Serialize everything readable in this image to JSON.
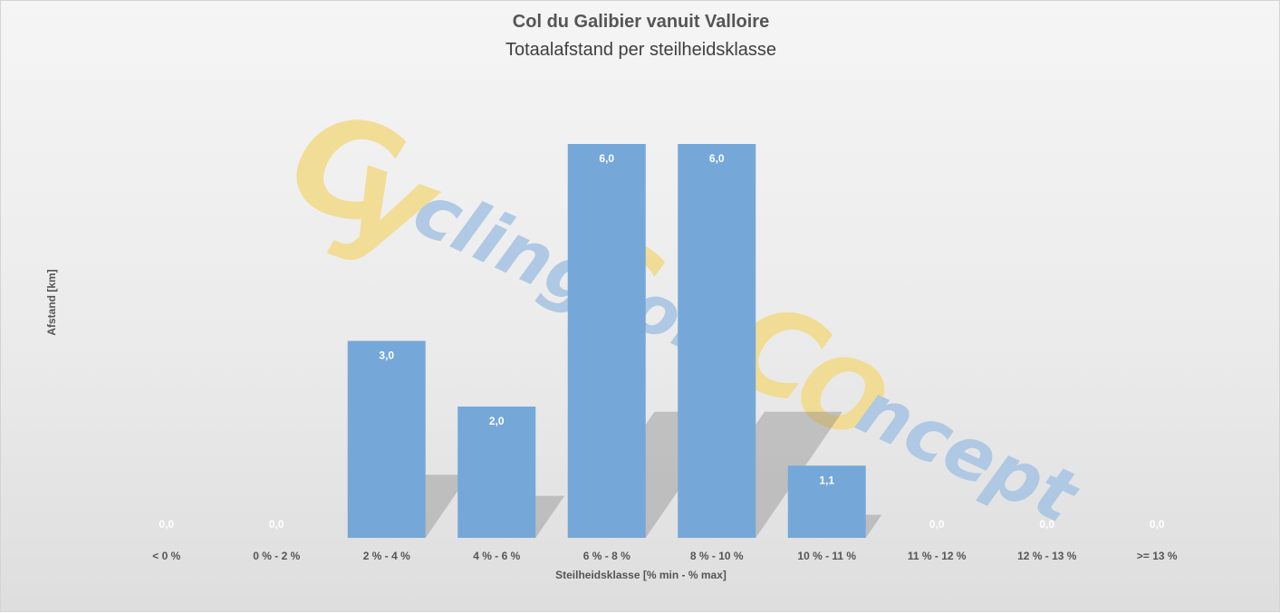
{
  "chart_data": {
    "type": "bar",
    "title": "Col du Galibier vanuit Valloire",
    "subtitle": "Totaalafstand per steilheidsklasse",
    "xlabel": "Steilheidsklasse [% min - % max]",
    "ylabel": "Afstand [km]",
    "categories": [
      "< 0 %",
      "0 % - 2 %",
      "2 % - 4 %",
      "4 % - 6 %",
      "6 % - 8 %",
      "8 % - 10 %",
      "10 % - 11 %",
      "11 % - 12 %",
      "12 % - 13 %",
      ">= 13 %"
    ],
    "values": [
      0.0,
      0.0,
      3.0,
      2.0,
      6.0,
      6.0,
      1.1,
      0.0,
      0.0,
      0.0
    ],
    "data_labels": [
      "0,0",
      "0,0",
      "3,0",
      "2,0",
      "6,0",
      "6,0",
      "1,1",
      "0,0",
      "0,0",
      "0,0"
    ],
    "ylim": [
      0,
      6
    ],
    "grid": false,
    "legend": "none",
    "bar_color": "#75a8d8",
    "background_color": "#ececec"
  },
  "watermark": {
    "logo_text": "CyclingColsConcept",
    "colors": {
      "yellow": "#f2db8c",
      "blue": "#a9c4e2"
    }
  }
}
